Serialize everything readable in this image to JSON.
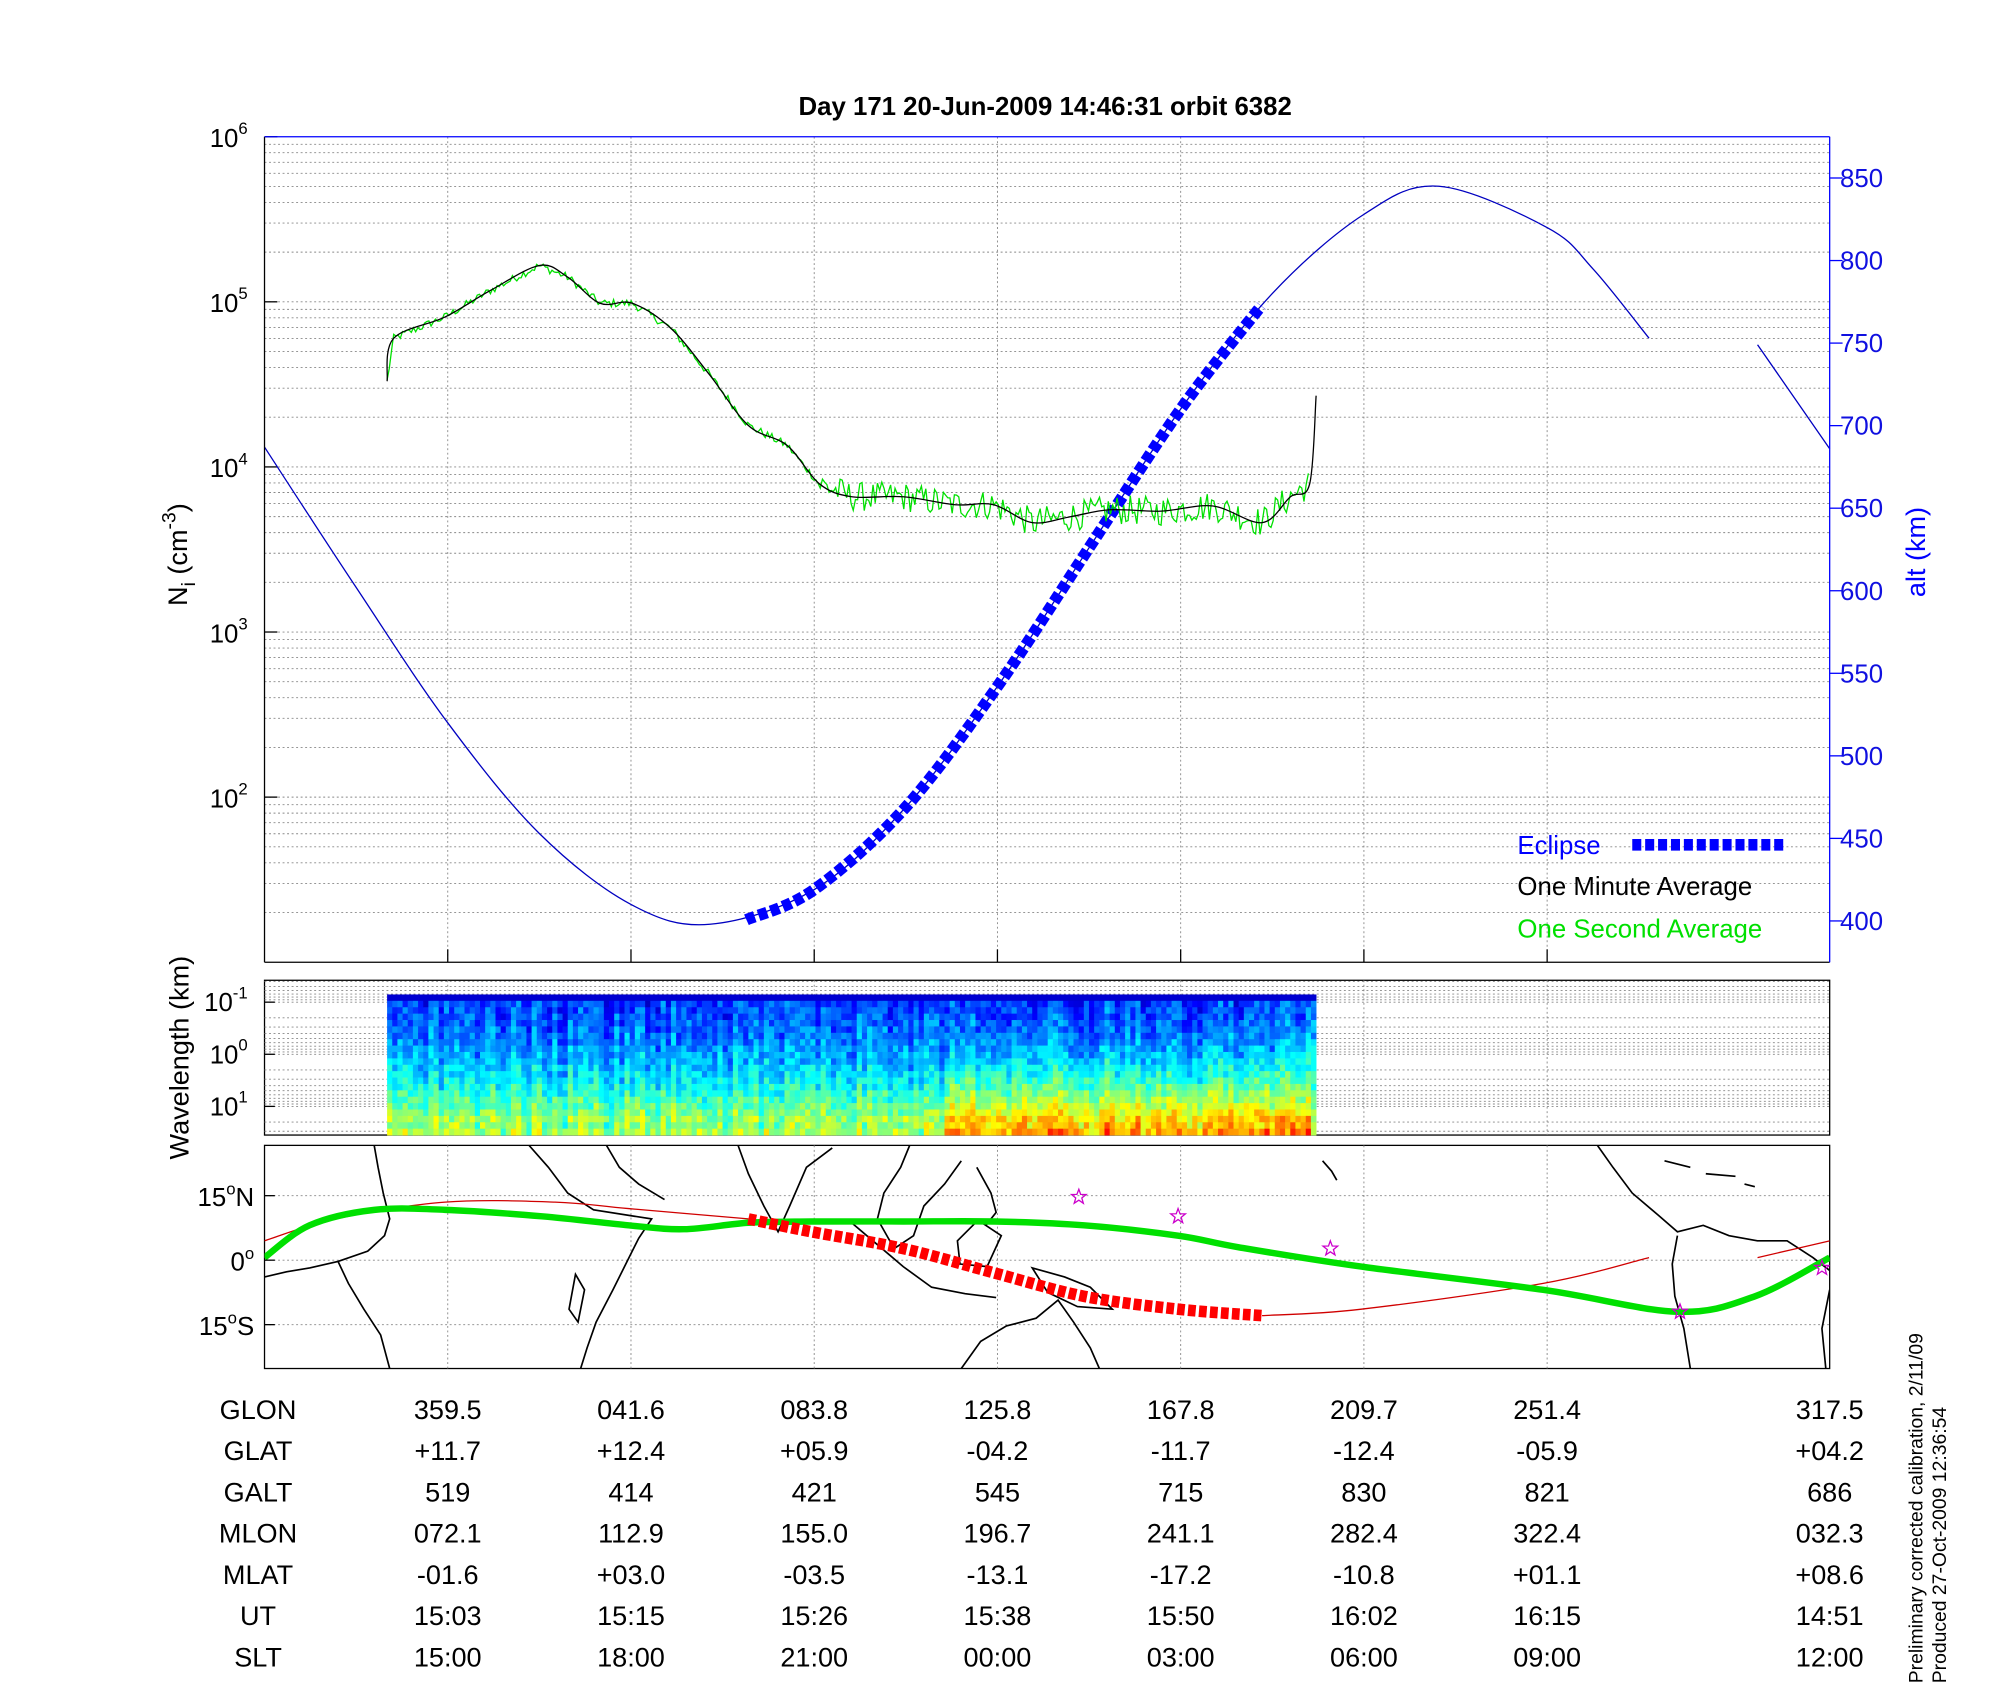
{
  "title": "Day 171  20-Jun-2009 14:46:31   orbit 6382",
  "chart_data": [
    {
      "type": "line",
      "title": "Day 171  20-Jun-2009 14:46:31   orbit 6382",
      "x_units": "orbit tick index (tick columns of the ephemeris table)",
      "xlim": [
        0,
        8.542
      ],
      "xticks": [
        1,
        2,
        3,
        4,
        5,
        6,
        7
      ],
      "ylabel": {
        "main": "N",
        "sub": "i",
        "unit": " (cm",
        "sup": "-3",
        "close": ")"
      },
      "yscale": "log",
      "ylim": [
        10,
        1000000
      ],
      "yticks": [
        {
          "base": "10",
          "exp": "2",
          "value": 2
        },
        {
          "base": "10",
          "exp": "3",
          "value": 3
        },
        {
          "base": "10",
          "exp": "4",
          "value": 4
        },
        {
          "base": "10",
          "exp": "5",
          "value": 5
        },
        {
          "base": "10",
          "exp": "6",
          "value": 6
        }
      ],
      "y2label": "alt (km)",
      "y2lim": [
        375,
        875
      ],
      "y2ticks": [
        "400",
        "450",
        "500",
        "550",
        "600",
        "650",
        "700",
        "750",
        "800",
        "850"
      ],
      "grid": true,
      "legend_position": "bottom-right",
      "legend": [
        {
          "label": "Eclipse",
          "color": "#0000ff"
        },
        {
          "label": "One Minute Average",
          "color": "#000000"
        },
        {
          "label": "One Second Average",
          "color": "#00e000"
        }
      ],
      "series": [
        {
          "name": "One Minute Average",
          "color": "#000000",
          "x": [
            0.669,
            0.704,
            0.986,
            1.232,
            1.5,
            1.655,
            1.831,
            2.007,
            2.218,
            2.43,
            2.641,
            2.852,
            3.028,
            3.204,
            3.486,
            3.768,
            3.979,
            4.19,
            4.401,
            4.613,
            4.894,
            5.176,
            5.444,
            5.599,
            5.704,
            5.739
          ],
          "y": [
            33000,
            60000,
            81000,
            117000,
            166000,
            141000,
            98000,
            98000,
            69000,
            36000,
            17800,
            13500,
            7900,
            6600,
            6600,
            5900,
            5900,
            4600,
            5000,
            5500,
            5400,
            5800,
            4600,
            6600,
            7900,
            27000
          ]
        },
        {
          "name": "One Second Average",
          "color": "#00e000",
          "note": "noisy version of the one-minute average, ends at x=5.704"
        },
        {
          "name": "alt",
          "color": "#0000c0",
          "axis": "right",
          "segments": [
            {
              "x": [
                0,
                0.5,
                1.0,
                1.5,
                2.0,
                2.43,
                3.0,
                3.5,
                4.0,
                4.5,
                5.0,
                5.5,
                6.0,
                6.41,
                7.0,
                7.25,
                7.556
              ],
              "y": [
                687,
                602,
                520,
                453,
                410,
                398,
                419,
                469,
                542,
                626,
                710,
                780,
                828,
                845,
                820,
                795,
                753
              ]
            },
            {
              "x": [
                8.148,
                8.542
              ],
              "y": [
                749,
                686
              ]
            }
          ]
        },
        {
          "name": "Eclipse",
          "color": "#0000ff",
          "axis": "right",
          "x": [
            2.63,
            3.0,
            3.5,
            4.0,
            4.5,
            5.0,
            5.44
          ],
          "y": [
            400.7,
            419,
            469,
            542,
            626,
            710,
            772.6
          ]
        }
      ]
    },
    {
      "type": "heatmap",
      "ylabel": "Wavelength (km)",
      "yscale": "log",
      "yticks": [
        {
          "base": "10",
          "exp": "-1",
          "value": -1
        },
        {
          "base": "10",
          "exp": "0",
          "value": 0
        },
        {
          "base": "10",
          "exp": "1",
          "value": 1
        }
      ],
      "ylim_log": [
        -1.42,
        1.55
      ],
      "x_extent": [
        0.669,
        5.739
      ],
      "colormap": "jet",
      "intensity_note": "strongest at long wavelengths between x=3.7 and x=5.7"
    },
    {
      "type": "line",
      "kind": "map",
      "yticks": [
        {
          "label": "15",
          "deg": "o",
          "hemi": "N",
          "lat": 15
        },
        {
          "label": "0",
          "deg": "o",
          "hemi": "",
          "lat": 0
        },
        {
          "label": "15",
          "deg": "o",
          "hemi": "S",
          "lat": -15
        }
      ],
      "ylim": [
        -25.2,
        26.7
      ],
      "series": [
        {
          "name": "track-green",
          "color": "#00e000",
          "x": [
            0,
            0.246,
            0.599,
            0.986,
            1.514,
            1.986,
            2.289,
            2.641,
            2.986,
            3.486,
            3.986,
            4.472,
            4.986,
            5.317,
            5.986,
            6.979,
            7.711,
            8.134,
            8.542
          ],
          "y": [
            0.6,
            8.1,
            11.7,
            11.7,
            10.2,
            8.1,
            7.2,
            8.7,
            9.0,
            9.0,
            9.0,
            8.1,
            5.7,
            3.0,
            -1.5,
            -6.9,
            -12,
            -8.4,
            0.6
          ]
        },
        {
          "name": "ground-track",
          "color": "#d00000",
          "segments": [
            {
              "x": [
                0,
                0.387,
                0.986,
                1.585,
                1.986,
                2.641
              ],
              "y": [
                4.5,
                9.6,
                13.5,
                13.5,
                12,
                9.6
              ]
            },
            {
              "x": [
                5.444,
                5.986,
                6.979,
                7.556
              ],
              "y": [
                -12.9,
                -11.4,
                -5.4,
                0.6
              ]
            },
            {
              "x": [
                8.148,
                8.542
              ],
              "y": [
                0.6,
                4.5
              ]
            }
          ]
        },
        {
          "name": "eclipse-track",
          "color": "#ff0000",
          "x": [
            2.641,
            2.986,
            3.486,
            3.986,
            4.472,
            4.986,
            5.444
          ],
          "y": [
            9.6,
            6.6,
            2.7,
            -3,
            -8.4,
            -11.4,
            -12.9
          ]
        }
      ],
      "markers": {
        "color": "#cc00cc",
        "symbol": "star",
        "x": [
          4.444,
          4.986,
          5.817,
          7.725,
          8.5
        ],
        "y": [
          14.7,
          10.2,
          2.7,
          -12,
          -1.8
        ]
      }
    }
  ],
  "ephemeris_table": {
    "rows": [
      {
        "label": "GLON",
        "values": [
          "359.5",
          "041.6",
          "083.8",
          "125.8",
          "167.8",
          "209.7",
          "251.4",
          "317.5"
        ]
      },
      {
        "label": "GLAT",
        "values": [
          "+11.7",
          "+12.4",
          "+05.9",
          "-04.2",
          "-11.7",
          "-12.4",
          "-05.9",
          "+04.2"
        ]
      },
      {
        "label": "GALT",
        "values": [
          "519",
          "414",
          "421",
          "545",
          "715",
          "830",
          "821",
          "686"
        ]
      },
      {
        "label": "MLON",
        "values": [
          "072.1",
          "112.9",
          "155.0",
          "196.7",
          "241.1",
          "282.4",
          "322.4",
          "032.3"
        ]
      },
      {
        "label": "MLAT",
        "values": [
          "-01.6",
          "+03.0",
          "-03.5",
          "-13.1",
          "-17.2",
          "-10.8",
          "+01.1",
          "+08.6"
        ]
      },
      {
        "label": "UT",
        "values": [
          "15:03",
          "15:15",
          "15:26",
          "15:38",
          "15:50",
          "16:02",
          "16:15",
          "14:51"
        ]
      },
      {
        "label": "SLT",
        "values": [
          "15:00",
          "18:00",
          "21:00",
          "00:00",
          "03:00",
          "06:00",
          "09:00",
          "12:00"
        ]
      }
    ]
  },
  "footer": {
    "line1": "Preliminary corrected calibration, 2/11/09",
    "line2": "Produced 27-Oct-2009 12:36:54"
  }
}
